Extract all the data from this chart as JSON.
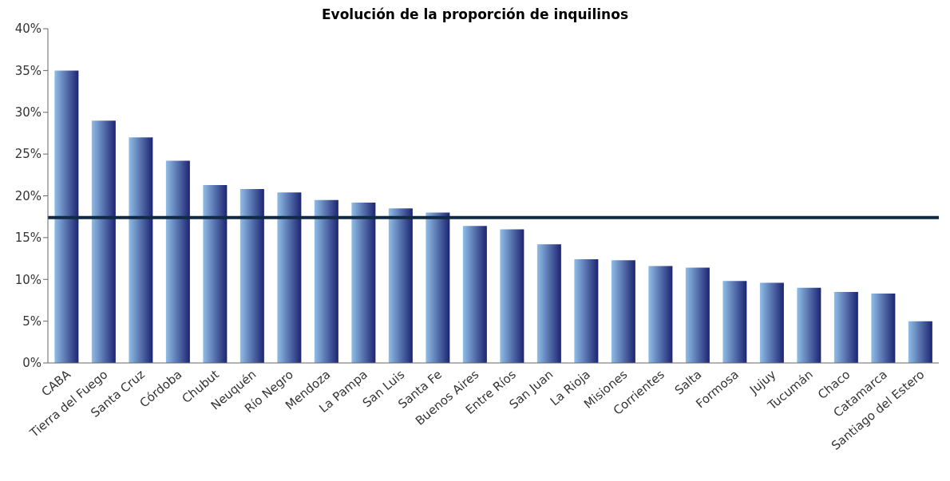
{
  "chart_data": {
    "type": "bar",
    "title": "Evolución de la proporción de inquilinos",
    "categories": [
      "CABA",
      "Tierra del Fuego",
      "Santa Cruz",
      "Córdoba",
      "Chubut",
      "Neuquén",
      "Río Negro",
      "Mendoza",
      "La Pampa",
      "San Luis",
      "Santa Fe",
      "Buenos Aires",
      "Entre Ríos",
      "San Juan",
      "La Rioja",
      "Misiones",
      "Corrientes",
      "Salta",
      "Formosa",
      "Jujuy",
      "Tucumán",
      "Chaco",
      "Catamarca",
      "Santiago del Estero"
    ],
    "values": [
      35.0,
      29.0,
      27.0,
      24.2,
      21.3,
      20.8,
      20.4,
      19.5,
      19.2,
      18.5,
      18.0,
      16.4,
      16.0,
      14.2,
      12.4,
      12.3,
      11.6,
      11.4,
      9.8,
      9.6,
      9.0,
      8.5,
      8.3,
      5.0
    ],
    "color": "#8fbde6",
    "ylim": [
      0,
      40
    ],
    "yticks": [
      {
        "value": 0,
        "label": "0%"
      },
      {
        "value": 5,
        "label": "5%"
      },
      {
        "value": 10,
        "label": "10%"
      },
      {
        "value": 15,
        "label": "15%"
      },
      {
        "value": 20,
        "label": "20%"
      },
      {
        "value": 25,
        "label": "25%"
      },
      {
        "value": 30,
        "label": "30%"
      },
      {
        "value": 35,
        "label": "35%"
      },
      {
        "value": 40,
        "label": "40%"
      }
    ],
    "ref_lines": [
      {
        "axis": "y",
        "value": 17.4,
        "color": "#112a44"
      }
    ]
  }
}
